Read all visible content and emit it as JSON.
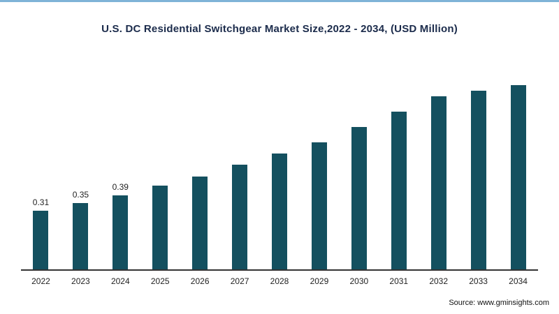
{
  "title": "U.S. DC Residential Switchgear Market Size,2022 - 2034,  (USD Million)",
  "source": "Source: www.gminsights.com",
  "colors": {
    "bar": "#14505f",
    "accent_line": "#7fb3d7",
    "title": "#1b2b4b",
    "axis": "#333333"
  },
  "chart_data": {
    "type": "bar",
    "title": "U.S. DC Residential Switchgear Market Size,2022 - 2034,  (USD Million)",
    "categories": [
      "2022",
      "2023",
      "2024",
      "2025",
      "2026",
      "2027",
      "2028",
      "2029",
      "2030",
      "2031",
      "2032",
      "2033",
      "2034"
    ],
    "values": [
      0.31,
      0.35,
      0.39,
      0.44,
      0.49,
      0.55,
      0.61,
      0.67,
      0.75,
      0.83,
      0.91,
      0.94,
      0.97
    ],
    "data_labels": [
      "0.31",
      "0.35",
      "0.39",
      "",
      "",
      "",
      "",
      "",
      "",
      "",
      "",
      "",
      ""
    ],
    "xlabel": "",
    "ylabel": "",
    "ylim": [
      0,
      1.0
    ],
    "grid": false,
    "legend": "none",
    "bar_color": "#14505f"
  }
}
